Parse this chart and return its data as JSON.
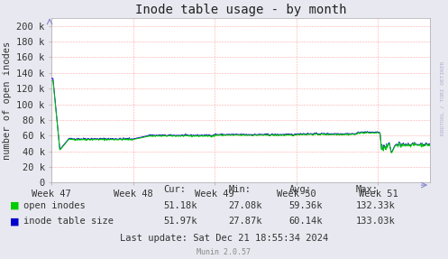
{
  "title": "Inode table usage - by month",
  "ylabel": "number of open inodes",
  "background_color": "#e8e8f0",
  "plot_bg_color": "#ffffff",
  "grid_color": "#ffaaaa",
  "x_ticks_pos": [
    0,
    168,
    336,
    504,
    672
  ],
  "x_tick_labels": [
    "Week 47",
    "Week 48",
    "Week 49",
    "Week 50",
    "Week 51"
  ],
  "ylim": [
    0,
    210000
  ],
  "xlim": [
    0,
    779
  ],
  "y_ticks": [
    0,
    20000,
    40000,
    60000,
    80000,
    100000,
    120000,
    140000,
    160000,
    180000,
    200000
  ],
  "y_tick_labels": [
    "0",
    "20 k",
    "40 k",
    "60 k",
    "80 k",
    "100 k",
    "120 k",
    "140 k",
    "160 k",
    "180 k",
    "200 k"
  ],
  "line_open_color": "#00cc00",
  "line_table_color": "#0000cc",
  "legend_labels": [
    "open inodes",
    "inode table size"
  ],
  "legend_cur": [
    "51.18k",
    "51.97k"
  ],
  "legend_min": [
    "27.08k",
    "27.87k"
  ],
  "legend_avg": [
    "59.36k",
    "60.14k"
  ],
  "legend_max": [
    "132.33k",
    "133.03k"
  ],
  "footer": "Munin 2.0.57",
  "last_update": "Last update: Sat Dec 21 18:55:34 2024",
  "watermark": "RRDTOOL / TOBI OETIKER",
  "title_fontsize": 10,
  "axis_fontsize": 7.5,
  "legend_fontsize": 7.5
}
